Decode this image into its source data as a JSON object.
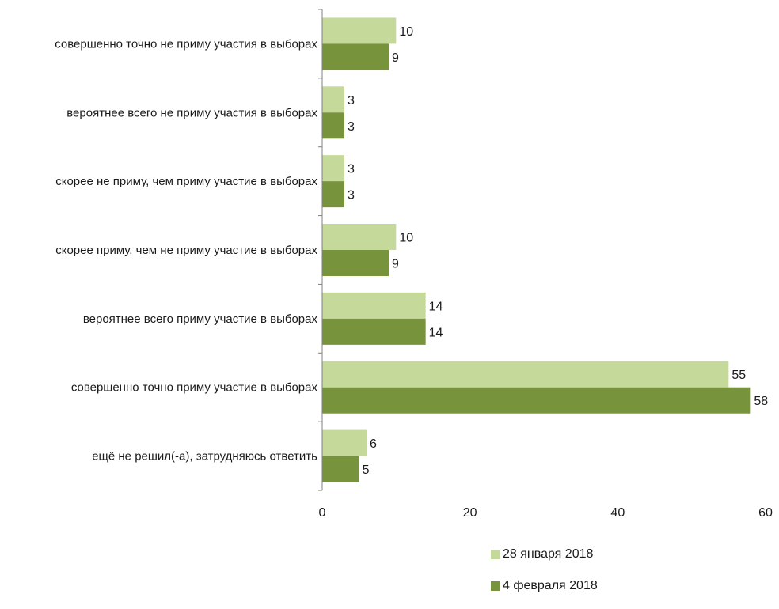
{
  "chart_data": {
    "type": "bar",
    "orientation": "horizontal",
    "categories": [
      "совершенно точно не приму участия в выборах",
      "вероятнее всего не приму участия в выборах",
      "скорее не приму, чем приму участие в выборах",
      "скорее приму, чем не приму участие в выборах",
      "вероятнее всего приму участие в выборах",
      "совершенно точно приму участие в выборах",
      "ещё не решил(-а), затрудняюсь ответить"
    ],
    "series": [
      {
        "name": "28 января 2018",
        "color": "#c5d99a",
        "values": [
          10,
          3,
          3,
          10,
          14,
          55,
          6
        ],
        "labels": [
          "10",
          "3",
          "3",
          "10",
          "14",
          "55",
          "6"
        ]
      },
      {
        "name": "4 февраля 2018",
        "color": "#77933c",
        "values": [
          9,
          3,
          3,
          9,
          14,
          58,
          5
        ],
        "labels": [
          "9",
          "3",
          "3",
          "9",
          "14",
          "58",
          "5"
        ]
      }
    ],
    "xlim": [
      0,
      60
    ],
    "xticks": [
      0,
      20,
      40,
      60
    ],
    "xtick_labels": [
      "0",
      "20",
      "40",
      "60"
    ],
    "grid": false,
    "legend_position": "bottom-right"
  }
}
